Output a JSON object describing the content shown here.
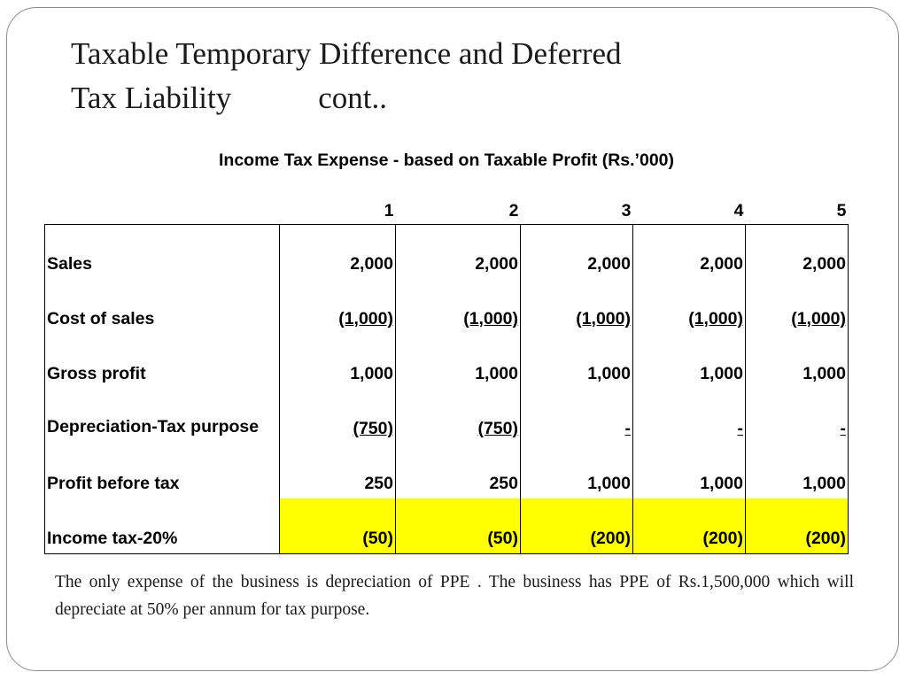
{
  "slide": {
    "title_line1": "Taxable Temporary Difference and Deferred",
    "title_line2": "Tax Liability",
    "title_cont": "cont..",
    "subtitle": "Income Tax Expense - based on Taxable Profit (Rs.’000)",
    "note": "The only expense of the business is depreciation of PPE . The business has PPE of Rs.1,500,000 which will depreciate at 50% per annum for tax purpose."
  },
  "table": {
    "headers": [
      "1",
      "2",
      "3",
      "4",
      "5"
    ],
    "rows": [
      {
        "label": "Sales",
        "values": [
          "2,000",
          "2,000",
          "2,000",
          "2,000",
          "2,000"
        ]
      },
      {
        "label": "Cost of sales",
        "values": [
          "(1,000)",
          "(1,000)",
          "(1,000)",
          "(1,000)",
          "(1,000)"
        ]
      },
      {
        "label": "Gross profit",
        "values": [
          "1,000",
          "1,000",
          "1,000",
          "1,000",
          "1,000"
        ]
      },
      {
        "label": "Depreciation-Tax purpose",
        "values": [
          "(750)",
          "(750)",
          "-",
          "-",
          "-"
        ]
      },
      {
        "label": "Profit before tax",
        "values": [
          "250",
          "250",
          "1,000",
          "1,000",
          "1,000"
        ]
      },
      {
        "label": "Income tax-20%",
        "values": [
          "(50)",
          "(50)",
          "(200)",
          "(200)",
          "(200)"
        ]
      }
    ],
    "highlight_color": "#ffff00"
  }
}
